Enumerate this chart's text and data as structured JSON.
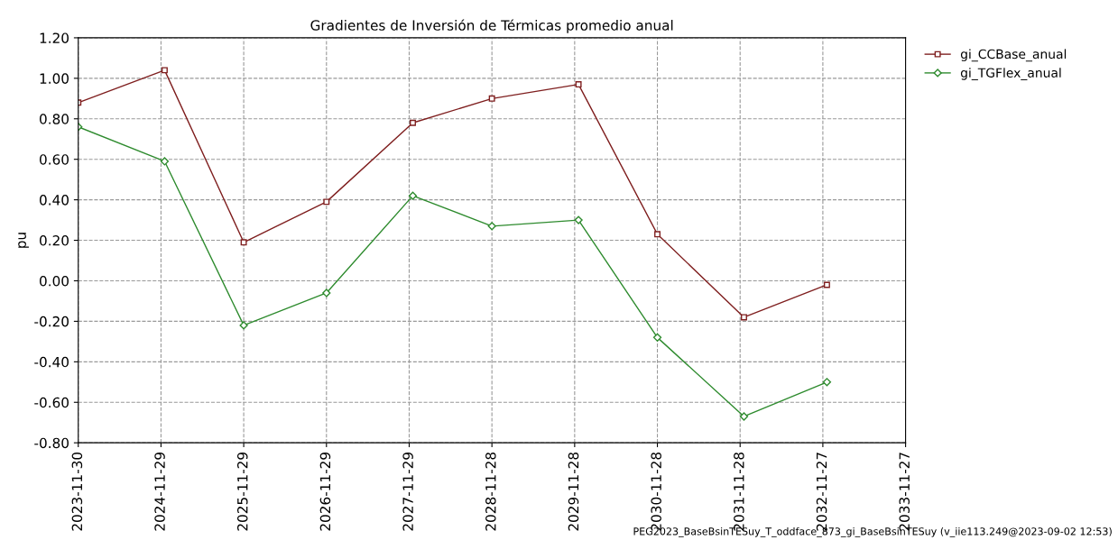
{
  "chart_data": {
    "type": "line",
    "title": "Gradientes de Inversión de Térmicas promedio anual",
    "ylabel": "pu",
    "x": [
      "2023-11-30",
      "2024-12-15",
      "2025-11-29",
      "2026-11-29",
      "2027-12-15",
      "2028-11-28",
      "2029-12-15",
      "2030-11-28",
      "2031-12-15",
      "2032-12-15"
    ],
    "series": [
      {
        "name": "gi_CCBase_anual",
        "color": "#7f1f1f",
        "marker": "square",
        "values": [
          0.88,
          1.04,
          0.19,
          0.39,
          0.78,
          0.9,
          0.97,
          0.23,
          -0.18,
          -0.02
        ]
      },
      {
        "name": "gi_TGFlex_anual",
        "color": "#2e8b2e",
        "marker": "diamond",
        "values": [
          0.76,
          0.59,
          -0.22,
          -0.06,
          0.42,
          0.27,
          0.3,
          -0.28,
          -0.67,
          -0.5
        ]
      }
    ],
    "xlim": [
      "2023-11-30",
      "2033-11-27"
    ],
    "xticks": [
      "2023-11-30",
      "2024-11-29",
      "2025-11-29",
      "2026-11-29",
      "2027-11-29",
      "2028-11-28",
      "2029-11-28",
      "2030-11-28",
      "2031-11-28",
      "2032-11-27",
      "2033-11-27"
    ],
    "ylim": [
      -0.8,
      1.2
    ],
    "yticks": [
      {
        "value": -0.8,
        "label": "-0.80"
      },
      {
        "value": -0.6,
        "label": "-0.60"
      },
      {
        "value": -0.4,
        "label": "-0.40"
      },
      {
        "value": -0.2,
        "label": "-0.20"
      },
      {
        "value": 0,
        "label": "0.00"
      },
      {
        "value": 0.2,
        "label": "0.20"
      },
      {
        "value": 0.4,
        "label": "0.40"
      },
      {
        "value": 0.6,
        "label": "0.60"
      },
      {
        "value": 0.8,
        "label": "0.80"
      },
      {
        "value": 1.0,
        "label": "1.00"
      },
      {
        "value": 1.2,
        "label": "1.20"
      }
    ],
    "grid": true,
    "legend": "top right",
    "line_style": "solid",
    "annotations": [
      "PEG2023_BaseBsinTESuy_T_oddface_873_gi_BaseBsinTESuy (v_iie113.249@2023-09-02 12:53)"
    ]
  }
}
